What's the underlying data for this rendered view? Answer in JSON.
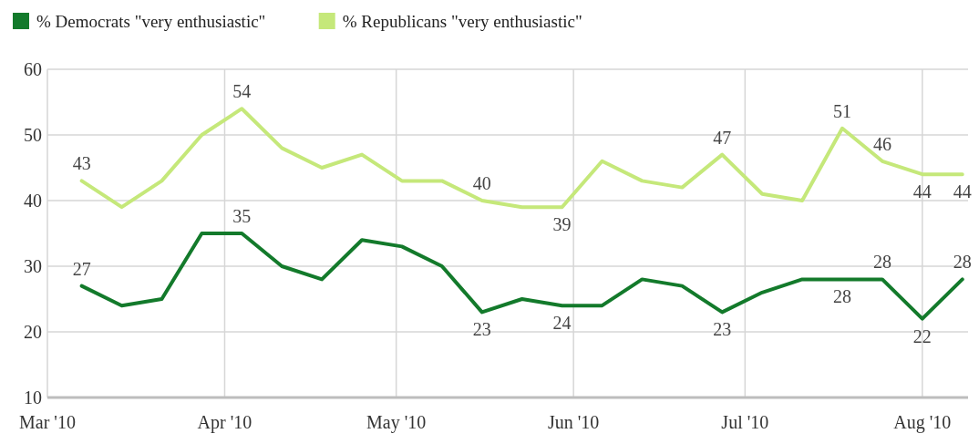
{
  "chart_data": {
    "type": "line",
    "x": [
      "2010-03-07",
      "2010-03-14",
      "2010-03-21",
      "2010-03-28",
      "2010-04-04",
      "2010-04-11",
      "2010-04-18",
      "2010-04-25",
      "2010-05-02",
      "2010-05-09",
      "2010-05-16",
      "2010-05-23",
      "2010-05-30",
      "2010-06-06",
      "2010-06-13",
      "2010-06-20",
      "2010-06-27",
      "2010-07-04",
      "2010-07-11",
      "2010-07-18",
      "2010-07-25",
      "2010-08-01",
      "2010-08-08"
    ],
    "series": [
      {
        "name": "% Democrats \"very enthusiastic\"",
        "color": "#137a2b",
        "values": [
          27,
          24,
          25,
          35,
          35,
          30,
          28,
          34,
          33,
          30,
          23,
          25,
          24,
          24,
          28,
          27,
          23,
          26,
          28,
          28,
          28,
          22,
          28
        ],
        "value_labels": [
          "27",
          null,
          null,
          null,
          "35",
          null,
          null,
          null,
          null,
          null,
          "23",
          null,
          "24",
          null,
          null,
          null,
          "23",
          null,
          null,
          "28",
          "28",
          "22",
          "28"
        ]
      },
      {
        "name": "% Republicans \"very enthusiastic\"",
        "color": "#c5e87a",
        "values": [
          43,
          39,
          43,
          50,
          54,
          48,
          45,
          47,
          43,
          43,
          40,
          39,
          39,
          46,
          43,
          42,
          47,
          41,
          40,
          51,
          46,
          44,
          44
        ],
        "value_labels": [
          "43",
          null,
          null,
          null,
          "54",
          null,
          null,
          null,
          null,
          null,
          "40",
          null,
          "39",
          null,
          null,
          null,
          "47",
          null,
          null,
          "51",
          "46",
          "44",
          "44"
        ]
      }
    ],
    "xlim": [
      "2010-03-01",
      "2010-08-09"
    ],
    "xticks": [
      {
        "value": "2010-03-01",
        "label": "Mar '10"
      },
      {
        "value": "2010-04-01",
        "label": "Apr '10"
      },
      {
        "value": "2010-05-01",
        "label": "May '10"
      },
      {
        "value": "2010-06-01",
        "label": "Jun '10"
      },
      {
        "value": "2010-07-01",
        "label": "Jul '10"
      },
      {
        "value": "2010-08-01",
        "label": "Aug '10"
      }
    ],
    "ylim": [
      10,
      60
    ],
    "yticks": [
      10,
      20,
      30,
      40,
      50,
      60
    ],
    "grid": true,
    "legend": "top left",
    "marker": "none",
    "line_style": "solid"
  }
}
